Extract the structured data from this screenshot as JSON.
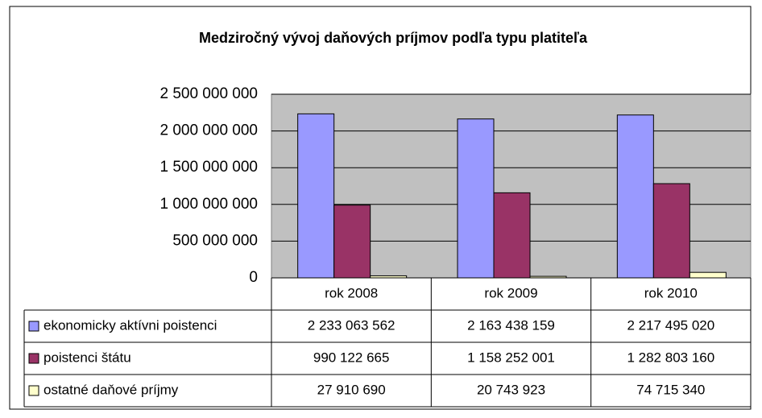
{
  "chart_data": {
    "type": "bar",
    "title": "Medziročný vývoj daňových príjmov podľa typu platiteľa",
    "categories": [
      "rok 2008",
      "rok 2009",
      "rok 2010"
    ],
    "series": [
      {
        "name": "ekonomicky aktívni poistenci",
        "color": "#9999ff",
        "values": [
          2233063562,
          2163438159,
          2217495020
        ],
        "value_labels": [
          "2 233 063 562",
          "2 163 438 159",
          "2 217 495 020"
        ]
      },
      {
        "name": "poistenci štátu",
        "color": "#993366",
        "values": [
          990122665,
          1158252001,
          1282803160
        ],
        "value_labels": [
          "990 122 665",
          "1 158 252 001",
          "1 282 803 160"
        ]
      },
      {
        "name": "ostatné daňové príjmy",
        "color": "#ffffcc",
        "values": [
          27910690,
          20743923,
          74715340
        ],
        "value_labels": [
          "27 910 690",
          "20 743 923",
          "74 715 340"
        ]
      }
    ],
    "ylim": [
      0,
      2500000000
    ],
    "yticks": [
      0,
      {
        "value": 500000000,
        "label": "500 000 000"
      },
      {
        "value": 1000000000,
        "label": "1 000 000 000"
      },
      {
        "value": 1500000000,
        "label": "1 500 000 000"
      },
      {
        "value": 2000000000,
        "label": "2 000 000 000"
      },
      {
        "value": 2500000000,
        "label": "2 500 000 000"
      }
    ],
    "grid": true,
    "plot_background": "#c0c0c0"
  }
}
